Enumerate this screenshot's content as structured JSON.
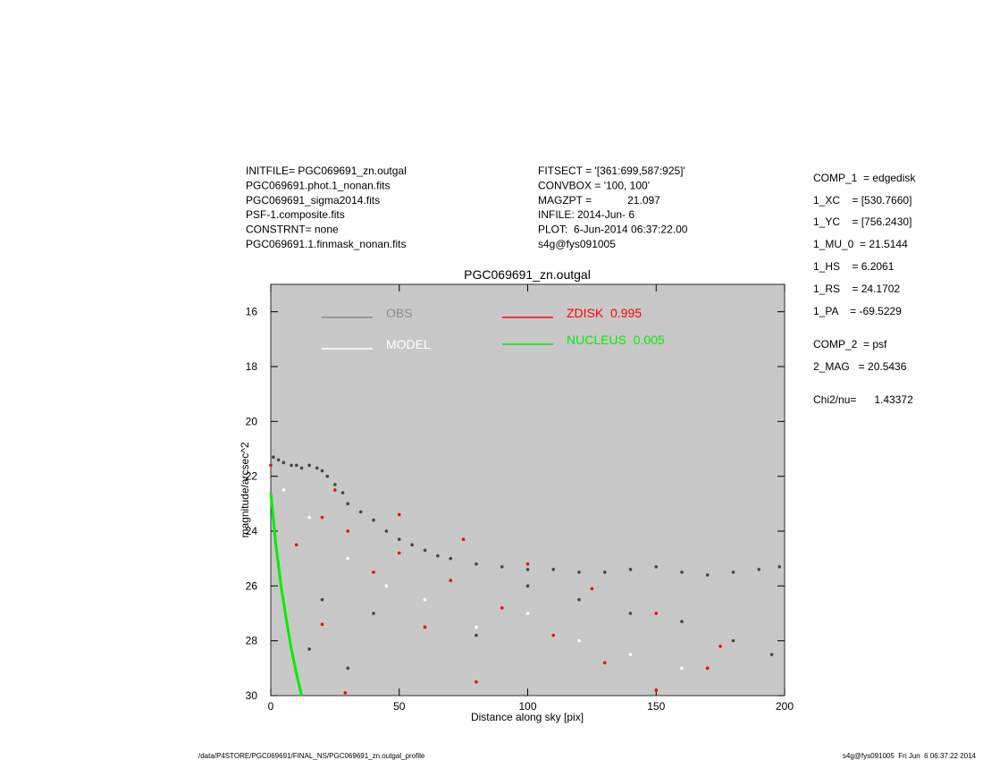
{
  "header": {
    "left": [
      "INITFILE= PGC069691_zn.outgal",
      "PGC069691.phot.1_nonan.fits",
      "PGC069691_sigma2014.fits",
      "PSF-1.composite.fits",
      "CONSTRNT= none",
      "PGC069691.1.finmask_nonan.fits"
    ],
    "middle": [
      "FITSECT = '[361:699,587:925]'",
      "CONVBOX = '100, 100'",
      "MAGZPT =            21.097",
      "INFILE: 2014-Jun- 6",
      "PLOT:  6-Jun-2014 06:37:22.00",
      "s4g@fys091005"
    ],
    "right": [
      "COMP_1  = edgedisk",
      "1_XC    = [530.7660]",
      "1_YC    = [756.2430]",
      "1_MU_0  = 21.5144",
      "1_HS    = 6.2061",
      "1_RS    = 24.1702",
      "1_PA    = -69.5229",
      "COMP_2  = psf",
      "2_MAG   = 20.5436",
      "Chi2/nu=      1.43372"
    ]
  },
  "footer": {
    "left": "/data/P4STORE/PGC069691/FINAL_NS/PGC069691_zn.outgal_profile",
    "right": "s4g@fys091005  Fri Jun  6 06:37:22 2014"
  },
  "chart_data": {
    "type": "scatter",
    "title": "PGC069691_zn.outgal",
    "xlabel": "Distance along sky [pix]",
    "ylabel": "magnitude/arcsec^2",
    "xlim": [
      0,
      200
    ],
    "ylim": [
      30,
      15
    ],
    "xticks": [
      0,
      50,
      100,
      150,
      200
    ],
    "yticks": [
      16,
      18,
      20,
      22,
      24,
      26,
      28,
      30
    ],
    "background": "#c8c8c8",
    "series": [
      {
        "name": "OBS",
        "color": "#444444",
        "legend_color": "#8a8a8a",
        "mode": "markers",
        "x": [
          1,
          3,
          5,
          8,
          10,
          12,
          15,
          18,
          20,
          22,
          25,
          28,
          30,
          35,
          40,
          45,
          50,
          55,
          60,
          65,
          70,
          80,
          90,
          100,
          110,
          120,
          130,
          140,
          150,
          160,
          170,
          180,
          190,
          198,
          20,
          40,
          60,
          80,
          100,
          120,
          140,
          160,
          180,
          195,
          15,
          30
        ],
        "values": [
          21.3,
          21.4,
          21.5,
          21.6,
          21.6,
          21.7,
          21.6,
          21.7,
          21.8,
          22.0,
          22.3,
          22.6,
          23.0,
          23.3,
          23.6,
          24.0,
          24.3,
          24.5,
          24.7,
          24.9,
          25.0,
          25.2,
          25.3,
          25.4,
          25.4,
          25.5,
          25.5,
          25.4,
          25.3,
          25.5,
          25.6,
          25.5,
          25.4,
          25.3,
          26.5,
          27.0,
          27.5,
          27.8,
          26.0,
          26.5,
          27.0,
          27.3,
          28.0,
          28.5,
          28.3,
          29.0
        ]
      },
      {
        "name": "MODEL",
        "color": "#ffffff",
        "legend_color": "#ffffff",
        "mode": "markers",
        "x": [
          5,
          15,
          30,
          45,
          60,
          80,
          100,
          120,
          140,
          160
        ],
        "values": [
          22.5,
          23.5,
          25.0,
          26.0,
          26.5,
          27.5,
          27.0,
          28.0,
          28.5,
          29.0
        ]
      },
      {
        "name": "ZDISK  0.995",
        "color": "#ff0000",
        "legend_color": "#ff0000",
        "mode": "markers",
        "x": [
          0,
          25,
          50,
          75,
          100,
          125,
          150,
          175,
          20,
          40,
          60,
          80,
          30,
          50,
          70,
          90,
          110,
          130,
          150,
          170,
          10,
          20,
          29
        ],
        "values": [
          21.6,
          22.5,
          23.4,
          24.3,
          25.2,
          26.1,
          27.0,
          28.2,
          23.5,
          25.5,
          27.5,
          29.5,
          24.0,
          24.8,
          25.8,
          26.8,
          27.8,
          28.8,
          29.8,
          29.0,
          24.5,
          27.4,
          29.9
        ]
      },
      {
        "name": "NUCLEUS  0.005",
        "color": "#00ee00",
        "legend_color": "#00ee00",
        "mode": "line",
        "x": [
          0,
          2,
          4,
          6,
          8,
          10,
          12
        ],
        "values": [
          22.6,
          24.5,
          26.0,
          27.2,
          28.3,
          29.2,
          30.0
        ]
      }
    ]
  }
}
